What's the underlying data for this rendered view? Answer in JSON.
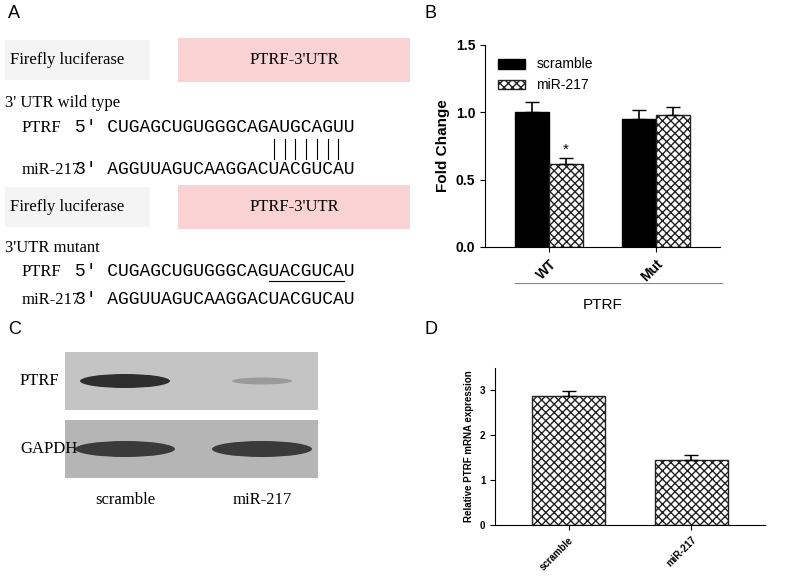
{
  "panels": [
    "A",
    "B",
    "C",
    "D"
  ],
  "diagram": {
    "constructs": [
      {
        "reporter": "Firefly luciferase",
        "utr": "PTRF-3'UTR",
        "title": "3' UTR wild type",
        "rows": [
          {
            "name": "PTRF",
            "sequence": "5' CUGAGCUGUGGGCAGAUGCAGUU"
          },
          {
            "name": "miR-217",
            "sequence": "3' AGGUUAGUCAAGGACUACGUCAU"
          }
        ]
      },
      {
        "reporter": "Firefly luciferase",
        "utr": "PTRF-3'UTR",
        "title": "3'UTR mutant",
        "rows": [
          {
            "name": "PTRF",
            "sequence": "5' CUGAGCUGUGGGCAGUACGUCAU"
          },
          {
            "name": "miR-217",
            "sequence": "3' AGGUUAGUCAAGGACUACGUCAU"
          }
        ]
      }
    ]
  },
  "chart_data": [
    {
      "type": "bar",
      "categories": [
        "WT",
        "Mut"
      ],
      "xlabel": "PTRF",
      "ylabel": "Fold Change",
      "ylim": [
        0,
        1.5
      ],
      "yticks": [
        {
          "value": 0,
          "label": "0.0"
        },
        {
          "value": 0.5,
          "label": "0.5"
        },
        {
          "value": 1.0,
          "label": "1.0"
        },
        {
          "value": 1.5,
          "label": "1.5"
        }
      ],
      "legend": "upper left",
      "series": [
        {
          "name": "scramble",
          "color": "#000000",
          "values": [
            1.0,
            0.95
          ],
          "errors": [
            0.08,
            0.07
          ]
        },
        {
          "name": "miR-217",
          "color": "#ffffff",
          "values": [
            0.62,
            0.98
          ],
          "errors": [
            0.04,
            0.06
          ]
        }
      ],
      "annotations": [
        {
          "text": "*",
          "category": "WT",
          "series": "miR-217"
        }
      ]
    },
    {
      "type": "bar",
      "categories": [
        "scramble",
        "miR-217"
      ],
      "ylabel": "Relative PTRF mRNA expression",
      "values": [
        2.87,
        1.45
      ],
      "errors": [
        0.12,
        0.1
      ],
      "color": "#ffffff",
      "ylim": [
        0,
        3.5
      ],
      "yticks": [
        0,
        1,
        2,
        3
      ]
    }
  ],
  "blot": {
    "rows": [
      "PTRF",
      "GAPDH"
    ],
    "lanes": [
      "scramble",
      "miR-217"
    ]
  }
}
